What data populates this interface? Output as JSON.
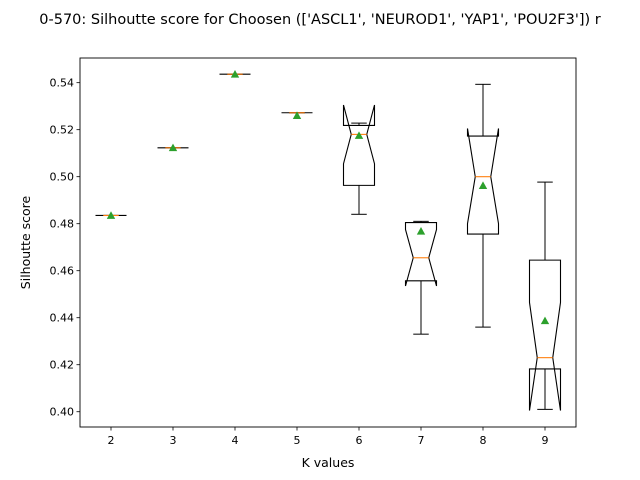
{
  "chart_data": {
    "type": "box",
    "title": "0-570: Silhoutte score for Choosen (['ASCL1', 'NEUROD1', 'YAP1', 'POU2F3']) r",
    "xlabel": "K values",
    "ylabel": "Silhoutte score",
    "categories": [
      "2",
      "3",
      "4",
      "5",
      "6",
      "7",
      "8",
      "9"
    ],
    "ylim": [
      0.3935,
      0.5505
    ],
    "yticks": [
      "0.40",
      "0.42",
      "0.44",
      "0.46",
      "0.48",
      "0.50",
      "0.52",
      "0.54"
    ],
    "grid": false,
    "notched": true,
    "boxes": [
      {
        "k": "2",
        "whisker_low": 0.4835,
        "q1": 0.4835,
        "median": 0.4835,
        "q3": 0.4835,
        "whisker_high": 0.4835,
        "notch_low": 0.4835,
        "notch_high": 0.4835,
        "mean": 0.4835
      },
      {
        "k": "3",
        "whisker_low": 0.5123,
        "q1": 0.5123,
        "median": 0.5123,
        "q3": 0.5123,
        "whisker_high": 0.5123,
        "notch_low": 0.5123,
        "notch_high": 0.5123,
        "mean": 0.5123
      },
      {
        "k": "4",
        "whisker_low": 0.5436,
        "q1": 0.5436,
        "median": 0.5436,
        "q3": 0.5436,
        "whisker_high": 0.5436,
        "notch_low": 0.5436,
        "notch_high": 0.5436,
        "mean": 0.5436
      },
      {
        "k": "5",
        "whisker_low": 0.5272,
        "q1": 0.5272,
        "median": 0.5272,
        "q3": 0.5272,
        "whisker_high": 0.5272,
        "notch_low": 0.5272,
        "notch_high": 0.5272,
        "mean": 0.526
      },
      {
        "k": "6",
        "whisker_low": 0.484,
        "q1": 0.4963,
        "median": 0.518,
        "q3": 0.5218,
        "whisker_high": 0.5228,
        "notch_low": 0.5055,
        "notch_high": 0.5305,
        "mean": 0.5175
      },
      {
        "k": "7",
        "whisker_low": 0.433,
        "q1": 0.4557,
        "median": 0.4655,
        "q3": 0.4805,
        "whisker_high": 0.481,
        "notch_low": 0.4535,
        "notch_high": 0.4775,
        "mean": 0.4768
      },
      {
        "k": "8",
        "whisker_low": 0.436,
        "q1": 0.4756,
        "median": 0.5,
        "q3": 0.5173,
        "whisker_high": 0.5393,
        "notch_low": 0.48,
        "notch_high": 0.5205,
        "mean": 0.4962
      },
      {
        "k": "9",
        "whisker_low": 0.401,
        "q1": 0.4182,
        "median": 0.423,
        "q3": 0.4645,
        "whisker_high": 0.4977,
        "notch_low": 0.4005,
        "notch_high": 0.4465,
        "mean": 0.4387
      }
    ],
    "colors": {
      "box": "#000000",
      "median": "#ff7f0e",
      "mean_marker": "#2ca02c",
      "text": "#000000",
      "background": "#ffffff"
    }
  }
}
